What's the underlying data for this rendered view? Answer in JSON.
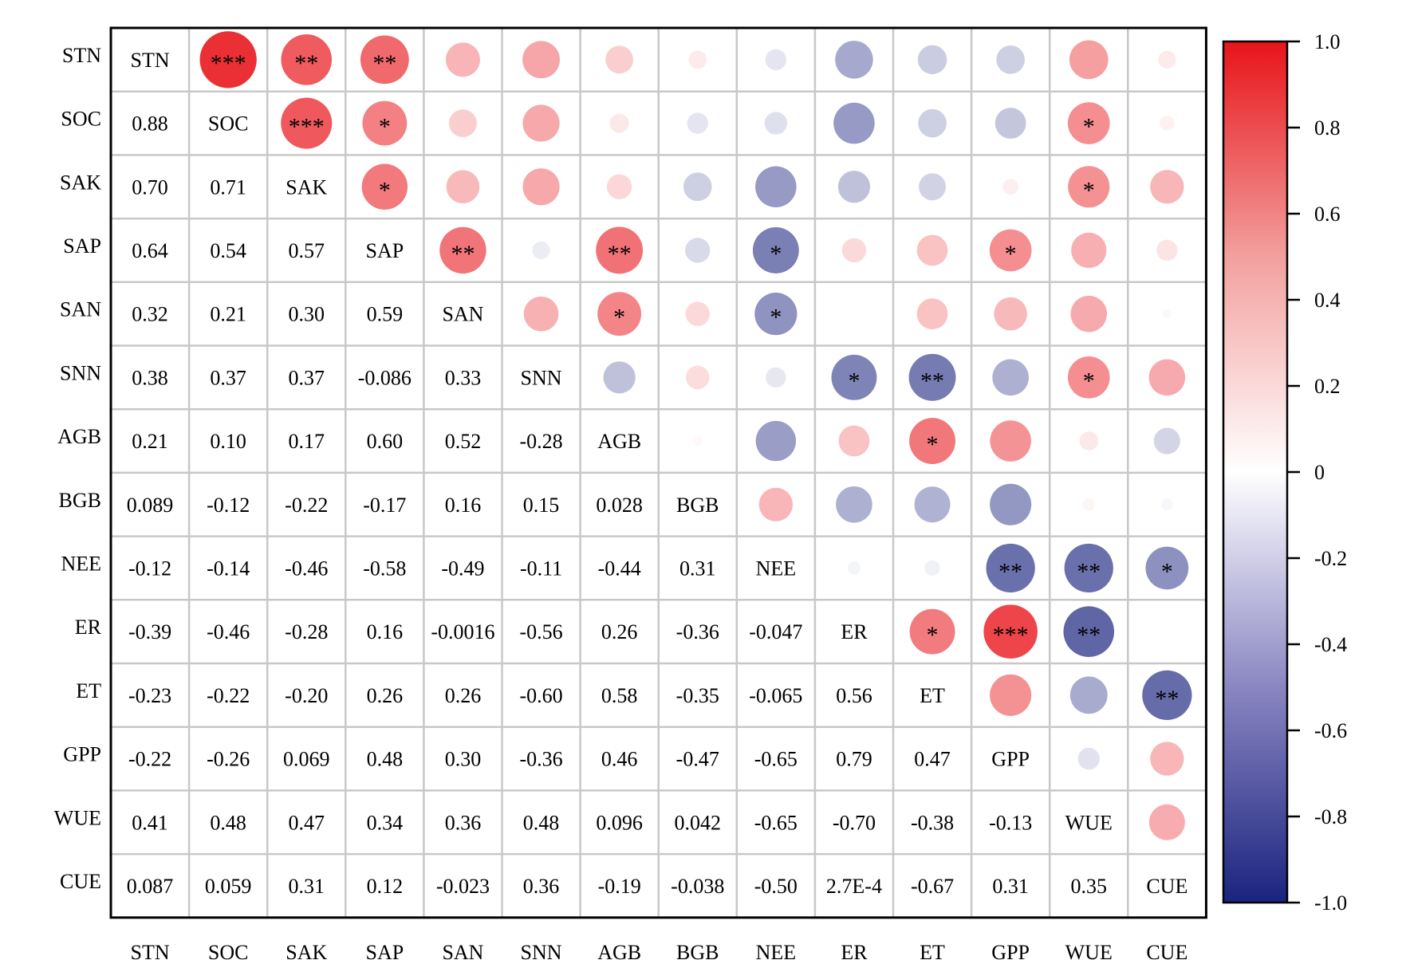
{
  "chart_data": {
    "type": "heatmap",
    "variables": [
      "STN",
      "SOC",
      "SAK",
      "SAP",
      "SAN",
      "SNN",
      "AGB",
      "BGB",
      "NEE",
      "ER",
      "ET",
      "GPP",
      "WUE",
      "CUE"
    ],
    "lower_labels": [
      [],
      [
        "0.88"
      ],
      [
        "0.70",
        "0.71"
      ],
      [
        "0.64",
        "0.54",
        "0.57"
      ],
      [
        "0.32",
        "0.21",
        "0.30",
        "0.59"
      ],
      [
        "0.38",
        "0.37",
        "0.37",
        "-0.086",
        "0.33"
      ],
      [
        "0.21",
        "0.10",
        "0.17",
        "0.60",
        "0.52",
        "-0.28"
      ],
      [
        "0.089",
        "-0.12",
        "-0.22",
        "-0.17",
        "0.16",
        "0.15",
        "0.028"
      ],
      [
        "-0.12",
        "-0.14",
        "-0.46",
        "-0.58",
        "-0.49",
        "-0.11",
        "-0.44",
        "0.31"
      ],
      [
        "-0.39",
        "-0.46",
        "-0.28",
        "0.16",
        "-0.0016",
        "-0.56",
        "0.26",
        "-0.36",
        "-0.047"
      ],
      [
        "-0.23",
        "-0.22",
        "-0.20",
        "0.26",
        "0.26",
        "-0.60",
        "0.58",
        "-0.35",
        "-0.065",
        "0.56"
      ],
      [
        "-0.22",
        "-0.26",
        "0.069",
        "0.48",
        "0.30",
        "-0.36",
        "0.46",
        "-0.47",
        "-0.65",
        "0.79",
        "0.47"
      ],
      [
        "0.41",
        "0.48",
        "0.47",
        "0.34",
        "0.36",
        "0.48",
        "0.096",
        "0.042",
        "-0.65",
        "-0.70",
        "-0.38",
        "-0.13"
      ],
      [
        "0.087",
        "0.059",
        "0.31",
        "0.12",
        "-0.023",
        "0.36",
        "-0.19",
        "-0.038",
        "-0.50",
        "2.7E-4",
        "-0.67",
        "0.31",
        "0.35"
      ]
    ],
    "significance": [
      [
        "",
        "***",
        "**",
        "**",
        "",
        "",
        "",
        "",
        "",
        "",
        "",
        "",
        "",
        ""
      ],
      [
        "",
        "",
        "***",
        "*",
        "",
        "",
        "",
        "",
        "",
        "",
        "",
        "",
        "*",
        ""
      ],
      [
        "",
        "",
        "",
        "*",
        "",
        "",
        "",
        "",
        "",
        "",
        "",
        "",
        "*",
        ""
      ],
      [
        "",
        "",
        "",
        "",
        "**",
        "",
        "**",
        "",
        "*",
        "",
        "",
        "*",
        "",
        ""
      ],
      [
        "",
        "",
        "",
        "",
        "",
        "",
        "*",
        "",
        "*",
        "",
        "",
        "",
        "",
        ""
      ],
      [
        "",
        "",
        "",
        "",
        "",
        "",
        "",
        "",
        "",
        "*",
        "**",
        "",
        "*",
        ""
      ],
      [
        "",
        "",
        "",
        "",
        "",
        "",
        "",
        "",
        "",
        "",
        "*",
        "",
        "",
        ""
      ],
      [
        "",
        "",
        "",
        "",
        "",
        "",
        "",
        "",
        "",
        "",
        "",
        "",
        "",
        ""
      ],
      [
        "",
        "",
        "",
        "",
        "",
        "",
        "",
        "",
        "",
        "",
        "",
        "**",
        "**",
        "*"
      ],
      [
        "",
        "",
        "",
        "",
        "",
        "",
        "",
        "",
        "",
        "",
        "*",
        "***",
        "**",
        ""
      ],
      [
        "",
        "",
        "",
        "",
        "",
        "",
        "",
        "",
        "",
        "",
        "",
        "",
        "",
        "**"
      ],
      [
        "",
        "",
        "",
        "",
        "",
        "",
        "",
        "",
        "",
        "",
        "",
        "",
        "",
        ""
      ],
      [
        "",
        "",
        "",
        "",
        "",
        "",
        "",
        "",
        "",
        "",
        "",
        "",
        "",
        ""
      ],
      [
        "",
        "",
        "",
        "",
        "",
        "",
        "",
        "",
        "",
        "",
        "",
        "",
        "",
        ""
      ]
    ],
    "colorbar": {
      "range": [
        -1.0,
        1.0
      ],
      "tick_labels": [
        "1.0",
        "0.8",
        "0.6",
        "0.4",
        "0.2",
        "0",
        "-0.2",
        "-0.4",
        "-0.6",
        "-0.8",
        "-1.0"
      ],
      "low_color": "#1a237e",
      "mid_color": "#ffffff",
      "high_color": "#e8141a"
    },
    "cell_style": "circle size and color encode correlation in upper triangle; lower triangle shows coefficient text; diagonal shows variable names"
  }
}
